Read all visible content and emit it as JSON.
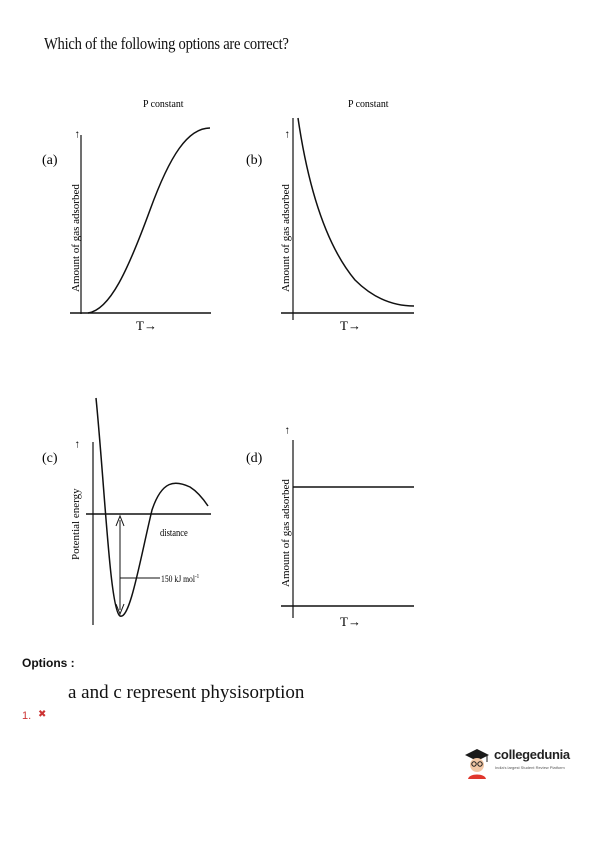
{
  "question": "Which of the following options are correct?",
  "figures": {
    "a": {
      "label": "(a)",
      "condition": "P constant",
      "ylabel": "Amount of gas adsorbed",
      "xlabel": "T→"
    },
    "b": {
      "label": "(b)",
      "condition": "P constant",
      "ylabel": "Amount of gas adsorbed",
      "xlabel": "T→"
    },
    "c": {
      "label": "(c)",
      "ylabel": "Potential energy",
      "distance_label": "distance",
      "energy_label": "150 kJ mol",
      "energy_exponent": "-1"
    },
    "d": {
      "label": "(d)",
      "ylabel": "Amount of gas adsorbed",
      "xlabel": "T→"
    }
  },
  "options": {
    "heading": "Options :",
    "items": [
      {
        "number": "1.",
        "text": "a and c represent physisorption",
        "mark_icon": "cross-icon",
        "mark_color": "#cc3333"
      }
    ]
  },
  "logo": {
    "name": "collegedunia",
    "tagline": "India's largest Student Review Platform",
    "accent": "#e0362c"
  }
}
